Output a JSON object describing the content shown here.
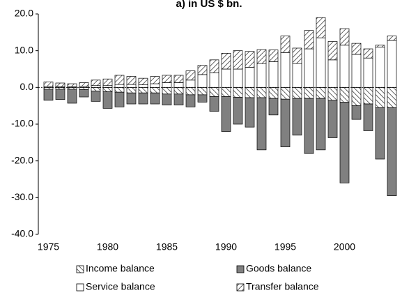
{
  "chart_data": {
    "type": "stacked-bar",
    "title": "a) in US $ bn.",
    "categories": [
      "1975",
      null,
      null,
      null,
      null,
      "1980",
      null,
      null,
      null,
      null,
      "1985",
      null,
      null,
      null,
      null,
      "1990",
      null,
      null,
      null,
      null,
      "1995",
      null,
      null,
      null,
      null,
      "2000",
      null,
      null,
      null,
      null
    ],
    "series": [
      {
        "name": "Income balance",
        "color": "#000000",
        "hatch": "\\",
        "values": [
          -0.5,
          -0.5,
          -0.5,
          -0.6,
          -1.0,
          -1.2,
          -1.3,
          -1.5,
          -1.5,
          -1.5,
          -1.8,
          -1.8,
          -2.0,
          -2.0,
          -2.5,
          -2.5,
          -2.7,
          -2.8,
          -2.8,
          -3.0,
          -3.2,
          -3.0,
          -3.0,
          -3.0,
          -3.5,
          -4.0,
          -5.0,
          -4.5,
          -5.5,
          -5.5
        ]
      },
      {
        "name": "Goods balance",
        "color": "#808080",
        "hatch": null,
        "values": [
          -3.0,
          -2.8,
          -3.8,
          -2.0,
          -2.8,
          -4.5,
          -4.0,
          -3.0,
          -3.0,
          -3.0,
          -3.0,
          -3.0,
          -3.3,
          -2.0,
          -4.0,
          -9.5,
          -7.3,
          -8.0,
          -14.2,
          -4.5,
          -13.0,
          -10.0,
          -15.0,
          -14.0,
          -10.2,
          -22.0,
          -3.7,
          -7.3,
          -14.0,
          -24.0
        ]
      },
      {
        "name": "Service balance",
        "color": "#ffffff",
        "hatch": null,
        "values": [
          0.3,
          0.2,
          0.2,
          0.3,
          0.5,
          0.5,
          0.8,
          0.8,
          0.7,
          1.0,
          1.3,
          1.3,
          2.0,
          3.5,
          4.0,
          5.0,
          5.0,
          5.5,
          6.5,
          7.0,
          9.5,
          6.5,
          10.5,
          13.5,
          7.5,
          11.5,
          9.0,
          8.0,
          11.0,
          12.8
        ]
      },
      {
        "name": "Transfer balance",
        "color": "#000000",
        "hatch": "/",
        "values": [
          1.2,
          1.0,
          0.8,
          1.0,
          1.5,
          1.8,
          2.5,
          2.2,
          1.8,
          2.0,
          2.0,
          2.0,
          2.5,
          2.5,
          3.5,
          4.3,
          5.0,
          4.3,
          3.8,
          3.2,
          4.5,
          4.2,
          5.0,
          5.5,
          5.0,
          4.5,
          3.0,
          2.5,
          0.5,
          1.2
        ]
      }
    ],
    "ylim": [
      -40,
      20
    ],
    "yticks": [
      {
        "value": -40,
        "label": "-40.0"
      },
      {
        "value": -30,
        "label": "-30.0"
      },
      {
        "value": -20,
        "label": "-20.0"
      },
      {
        "value": -10,
        "label": "-10.0"
      },
      {
        "value": 0,
        "label": "0.0"
      },
      {
        "value": 10,
        "label": "10.0"
      },
      {
        "value": 20,
        "label": "20.0"
      }
    ]
  }
}
